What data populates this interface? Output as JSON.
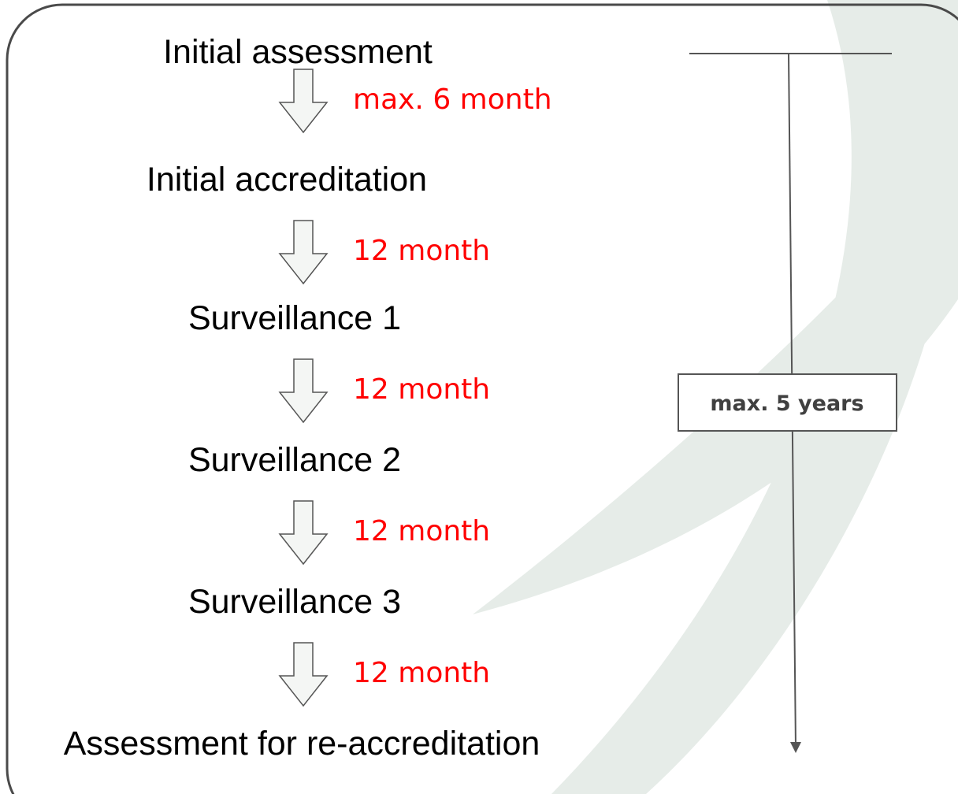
{
  "steps": [
    "Initial assessment",
    "Initial accreditation",
    "Surveillance 1",
    "Surveillance 2",
    "Surveillance 3",
    "Assessment for re-accreditation"
  ],
  "intervals": [
    "max. 6 month",
    "12 month",
    "12 month",
    "12 month",
    "12 month"
  ],
  "total": "max. 5 years"
}
